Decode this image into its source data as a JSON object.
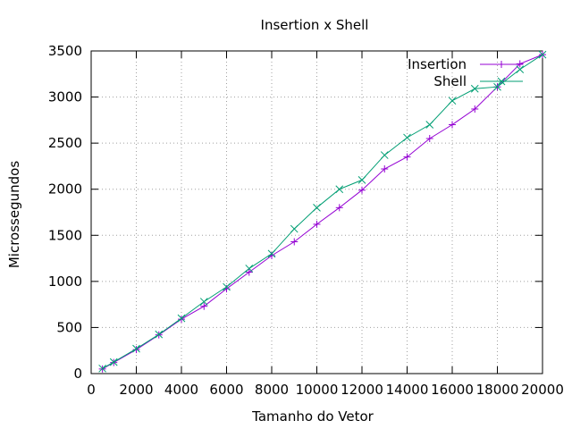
{
  "chart_data": {
    "type": "line",
    "title": "Insertion x Shell",
    "xlabel": "Tamanho do Vetor",
    "ylabel": "Microssegundos",
    "xlim": [
      0,
      20000
    ],
    "ylim": [
      0,
      3500
    ],
    "xticks": [
      0,
      2000,
      4000,
      6000,
      8000,
      10000,
      12000,
      14000,
      16000,
      18000,
      20000
    ],
    "yticks": [
      0,
      500,
      1000,
      1500,
      2000,
      2500,
      3000,
      3500
    ],
    "grid": true,
    "legend_position": "top-right",
    "series": [
      {
        "name": "Insertion",
        "color": "#9400d3",
        "marker": "plus",
        "x": [
          500,
          1000,
          2000,
          3000,
          4000,
          5000,
          6000,
          7000,
          8000,
          9000,
          10000,
          11000,
          12000,
          13000,
          14000,
          15000,
          16000,
          17000,
          18000,
          19000,
          20000
        ],
        "y": [
          50,
          120,
          260,
          420,
          590,
          730,
          920,
          1100,
          1280,
          1430,
          1620,
          1800,
          1990,
          2220,
          2350,
          2550,
          2700,
          2870,
          3110,
          3360,
          3460
        ]
      },
      {
        "name": "Shell",
        "color": "#009e73",
        "marker": "cross",
        "x": [
          500,
          1000,
          2000,
          3000,
          4000,
          5000,
          6000,
          7000,
          8000,
          9000,
          10000,
          11000,
          12000,
          13000,
          14000,
          15000,
          16000,
          17000,
          18000,
          19000,
          20000
        ],
        "y": [
          55,
          125,
          270,
          425,
          600,
          780,
          940,
          1140,
          1300,
          1570,
          1800,
          2000,
          2100,
          2370,
          2560,
          2700,
          2960,
          3090,
          3110,
          3300,
          3460
        ]
      }
    ]
  }
}
